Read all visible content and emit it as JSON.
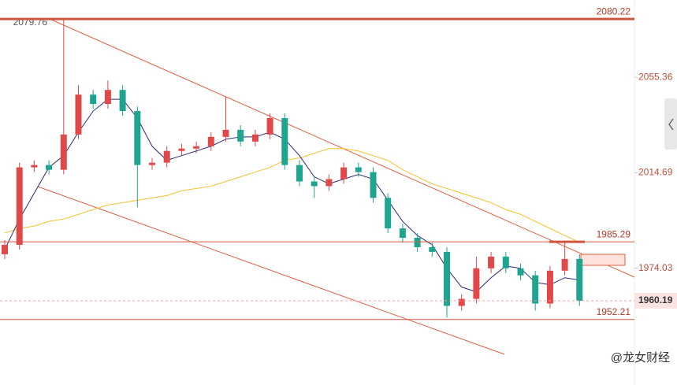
{
  "chart_data": {
    "type": "candlestick",
    "ylim": [
      1924.3,
      2088.3
    ],
    "yticks": [
      2055.36,
      2014.69,
      1974.03
    ],
    "levels": [
      2080.22,
      1985.29,
      1952.21
    ],
    "current_price": 1960.19,
    "high_label": 2079.76,
    "up_color": "#e0484a",
    "down_color": "#1fa58f",
    "open": [
      1980,
      1984,
      2017,
      2018,
      2016,
      2031,
      2048,
      2044,
      2050,
      2041,
      2018,
      2019,
      2024,
      2025,
      2026,
      2030,
      2033,
      2028,
      2031,
      2038,
      2018,
      2011,
      2009,
      2012,
      2017,
      2015,
      2004,
      1991,
      1987,
      1983,
      1981,
      1958,
      1961,
      1974,
      1979,
      1974,
      1971,
      1959,
      1973,
      1978
    ],
    "high": [
      1986,
      2019,
      2020,
      2020,
      2079.76,
      2052,
      2050,
      2054,
      2052,
      2043,
      2021,
      2026,
      2027,
      2028,
      2032,
      2047,
      2035,
      2033,
      2040,
      2040,
      2020,
      2013,
      2014,
      2019,
      2019,
      2017,
      2006,
      1993,
      1989,
      1985,
      1983,
      1963,
      1979,
      1981,
      1981,
      1976,
      1973,
      1975,
      1985.29,
      1980
    ],
    "low": [
      1978,
      1982,
      2015,
      2014,
      2014,
      2029,
      2042,
      2042,
      2039,
      2000,
      2016,
      2017,
      2022,
      2023,
      2024,
      2028,
      2026,
      2026,
      2029,
      2016,
      2009,
      2004,
      2007,
      2010,
      2013,
      2002,
      1989,
      1985,
      1981,
      1979,
      1953,
      1956,
      1959,
      1972,
      1972,
      1969,
      1956,
      1957,
      1971,
      1958
    ],
    "close": [
      1984,
      2017,
      2018,
      2016,
      2031,
      2048,
      2044,
      2050,
      2041,
      2018,
      2019,
      2024,
      2025,
      2026,
      2030,
      2033,
      2028,
      2031,
      2038,
      2018,
      2011,
      2009,
      2012,
      2017,
      2015,
      2004,
      1991,
      1987,
      1983,
      1981,
      1958,
      1961,
      1974,
      1979,
      1974,
      1971,
      1959,
      1973,
      1978,
      1960.19
    ],
    "series": [
      {
        "color": "#f2c12e",
        "values": [
          1989,
          1991,
          1992,
          1994,
          1995,
          1997,
          1999,
          2001,
          2002,
          2003,
          2004,
          2005,
          2007,
          2008,
          2009,
          2011,
          2013,
          2015,
          2017,
          2020,
          2021,
          2023,
          2025,
          2025,
          2024,
          2022,
          2020,
          2016,
          2013,
          2010,
          2008,
          2006,
          2004,
          2002,
          1999,
          1997,
          1994,
          1991,
          1988,
          1985
        ]
      },
      {
        "color": "#2c2a7a",
        "values": [
          1982,
          1995,
          2006,
          2017,
          2022,
          2032,
          2041,
          2046,
          2046,
          2038,
          2026,
          2020,
          2022,
          2024,
          2026,
          2029,
          2030,
          2030,
          2032,
          2029,
          2022,
          2013,
          2010,
          2012,
          2014,
          2012,
          2003,
          1994,
          1988,
          1984,
          1974,
          1966,
          1964,
          1970,
          1975,
          1974,
          1968,
          1967,
          1970,
          1969
        ]
      }
    ]
  },
  "watermark": "@龙女财经"
}
